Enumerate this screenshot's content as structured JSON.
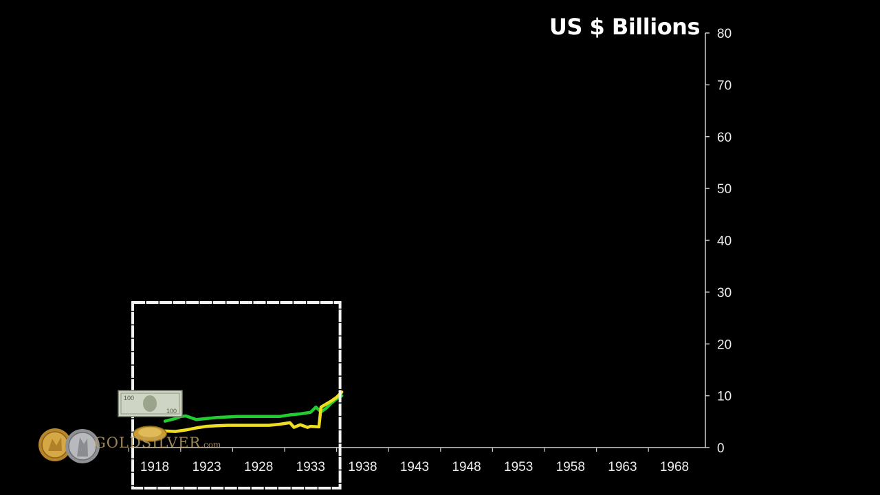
{
  "header": {
    "unit_title": "US $ Billions"
  },
  "watermark": {
    "brand": "GOLDSILVER",
    "domain": ".com"
  },
  "chart_data": {
    "type": "line",
    "title": "",
    "ylabel": "US $ Billions",
    "xlabel": "",
    "ylim": [
      0,
      80
    ],
    "y_ticks": [
      "0",
      "10",
      "20",
      "30",
      "40",
      "50",
      "60",
      "70",
      "80"
    ],
    "x_ticks": [
      "1918",
      "1923",
      "1928",
      "1933",
      "1938",
      "1943",
      "1948",
      "1953",
      "1958",
      "1963",
      "1968"
    ],
    "xlim": [
      1914.6,
      1972.2
    ],
    "grid": false,
    "highlight_box": {
      "x_from": 1918,
      "x_to": 1935.5
    },
    "series": [
      {
        "color": "#22cc33",
        "icon": "dollar-bill-icon",
        "points": [
          [
            1919,
            5.1
          ],
          [
            1920,
            5.6
          ],
          [
            1920.5,
            6.0
          ],
          [
            1921,
            6.1
          ],
          [
            1922,
            5.4
          ],
          [
            1923,
            5.6
          ],
          [
            1924,
            5.8
          ],
          [
            1925,
            5.9
          ],
          [
            1926,
            6.0
          ],
          [
            1927,
            6.0
          ],
          [
            1928,
            6.0
          ],
          [
            1929,
            6.0
          ],
          [
            1930,
            6.0
          ],
          [
            1931,
            6.3
          ],
          [
            1932,
            6.5
          ],
          [
            1933,
            6.8
          ],
          [
            1933.5,
            7.8
          ],
          [
            1934,
            6.9
          ],
          [
            1934.5,
            7.6
          ],
          [
            1935,
            8.6
          ],
          [
            1935.5,
            9.4
          ],
          [
            1936,
            10.0
          ]
        ]
      },
      {
        "color": "#eedd22",
        "icon": "gold-coin-icon",
        "points": [
          [
            1919,
            3.2
          ],
          [
            1920,
            3.1
          ],
          [
            1921,
            3.4
          ],
          [
            1922,
            3.8
          ],
          [
            1923,
            4.1
          ],
          [
            1924,
            4.2
          ],
          [
            1925,
            4.3
          ],
          [
            1926,
            4.3
          ],
          [
            1927,
            4.3
          ],
          [
            1928,
            4.3
          ],
          [
            1929,
            4.3
          ],
          [
            1930,
            4.5
          ],
          [
            1931,
            4.8
          ],
          [
            1931.4,
            3.9
          ],
          [
            1932,
            4.4
          ],
          [
            1932.7,
            3.9
          ],
          [
            1933,
            4.1
          ],
          [
            1933.8,
            4.0
          ],
          [
            1934,
            7.8
          ],
          [
            1935,
            9.0
          ],
          [
            1935.5,
            9.7
          ],
          [
            1936,
            10.7
          ]
        ]
      }
    ]
  }
}
